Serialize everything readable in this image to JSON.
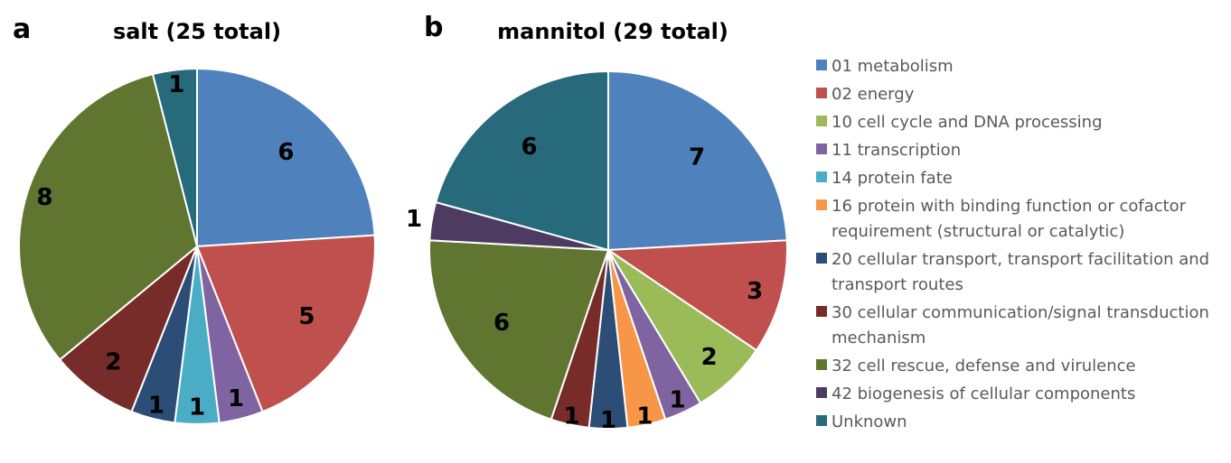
{
  "chart_data": [
    {
      "type": "pie",
      "panel": "a",
      "title": "salt (25 total)",
      "categories": [
        "01 metabolism",
        "02 energy",
        "10 cell cycle and DNA processing",
        "11 transcription",
        "14 protein fate",
        "16 protein with binding function or cofactor requirement (structural or catalytic)",
        "20 cellular transport, transport facilitation and transport routes",
        "30 cellular communication/signal transduction mechanism",
        "32 cell rescue, defense and virulence",
        "42 biogenesis of cellular components",
        "Unknown"
      ],
      "values": [
        6,
        5,
        0,
        1,
        1,
        0,
        1,
        2,
        8,
        0,
        1
      ],
      "data_labels": [
        "6",
        "5",
        "",
        "1",
        "1",
        "",
        "1",
        "2",
        "8",
        "",
        "1"
      ]
    },
    {
      "type": "pie",
      "panel": "b",
      "title": "mannitol (29 total)",
      "categories": [
        "01 metabolism",
        "02 energy",
        "10 cell cycle and DNA processing",
        "11 transcription",
        "14 protein fate",
        "16 protein with binding function or cofactor requirement (structural or catalytic)",
        "20 cellular transport, transport facilitation and transport routes",
        "30 cellular communication/signal transduction mechanism",
        "32 cell rescue, defense and virulence",
        "42 biogenesis of cellular components",
        "Unknown"
      ],
      "values": [
        7,
        3,
        2,
        1,
        0,
        1,
        1,
        1,
        6,
        1,
        6
      ],
      "data_labels": [
        "7",
        "3",
        "2",
        "1",
        "",
        "1",
        "1",
        "1",
        "6",
        "1",
        "6"
      ]
    }
  ],
  "legend": {
    "placement": "right",
    "entries": [
      {
        "lines": [
          "01 metabolism"
        ],
        "color": "#4f81bd"
      },
      {
        "lines": [
          "02 energy"
        ],
        "color": "#c0504d"
      },
      {
        "lines": [
          "10 cell cycle and DNA processing"
        ],
        "color": "#9bbb59"
      },
      {
        "lines": [
          "11 transcription"
        ],
        "color": "#8064a2"
      },
      {
        "lines": [
          "14 protein fate"
        ],
        "color": "#4bacc6"
      },
      {
        "lines": [
          "16 protein with binding function or cofactor",
          "requirement (structural or catalytic)"
        ],
        "color": "#f79646"
      },
      {
        "lines": [
          "20 cellular transport, transport facilitation and",
          "transport routes"
        ],
        "color": "#2c4d75"
      },
      {
        "lines": [
          "30 cellular communication/signal transduction",
          "mechanism"
        ],
        "color": "#772c2a"
      },
      {
        "lines": [
          "32 cell rescue, defense and virulence"
        ],
        "color": "#5f7530"
      },
      {
        "lines": [
          "42 biogenesis of cellular components"
        ],
        "color": "#4d3b62"
      },
      {
        "lines": [
          "Unknown"
        ],
        "color": "#276a7c"
      }
    ]
  },
  "slice_border_color": "#ffffff",
  "background_color": "#ffffff"
}
